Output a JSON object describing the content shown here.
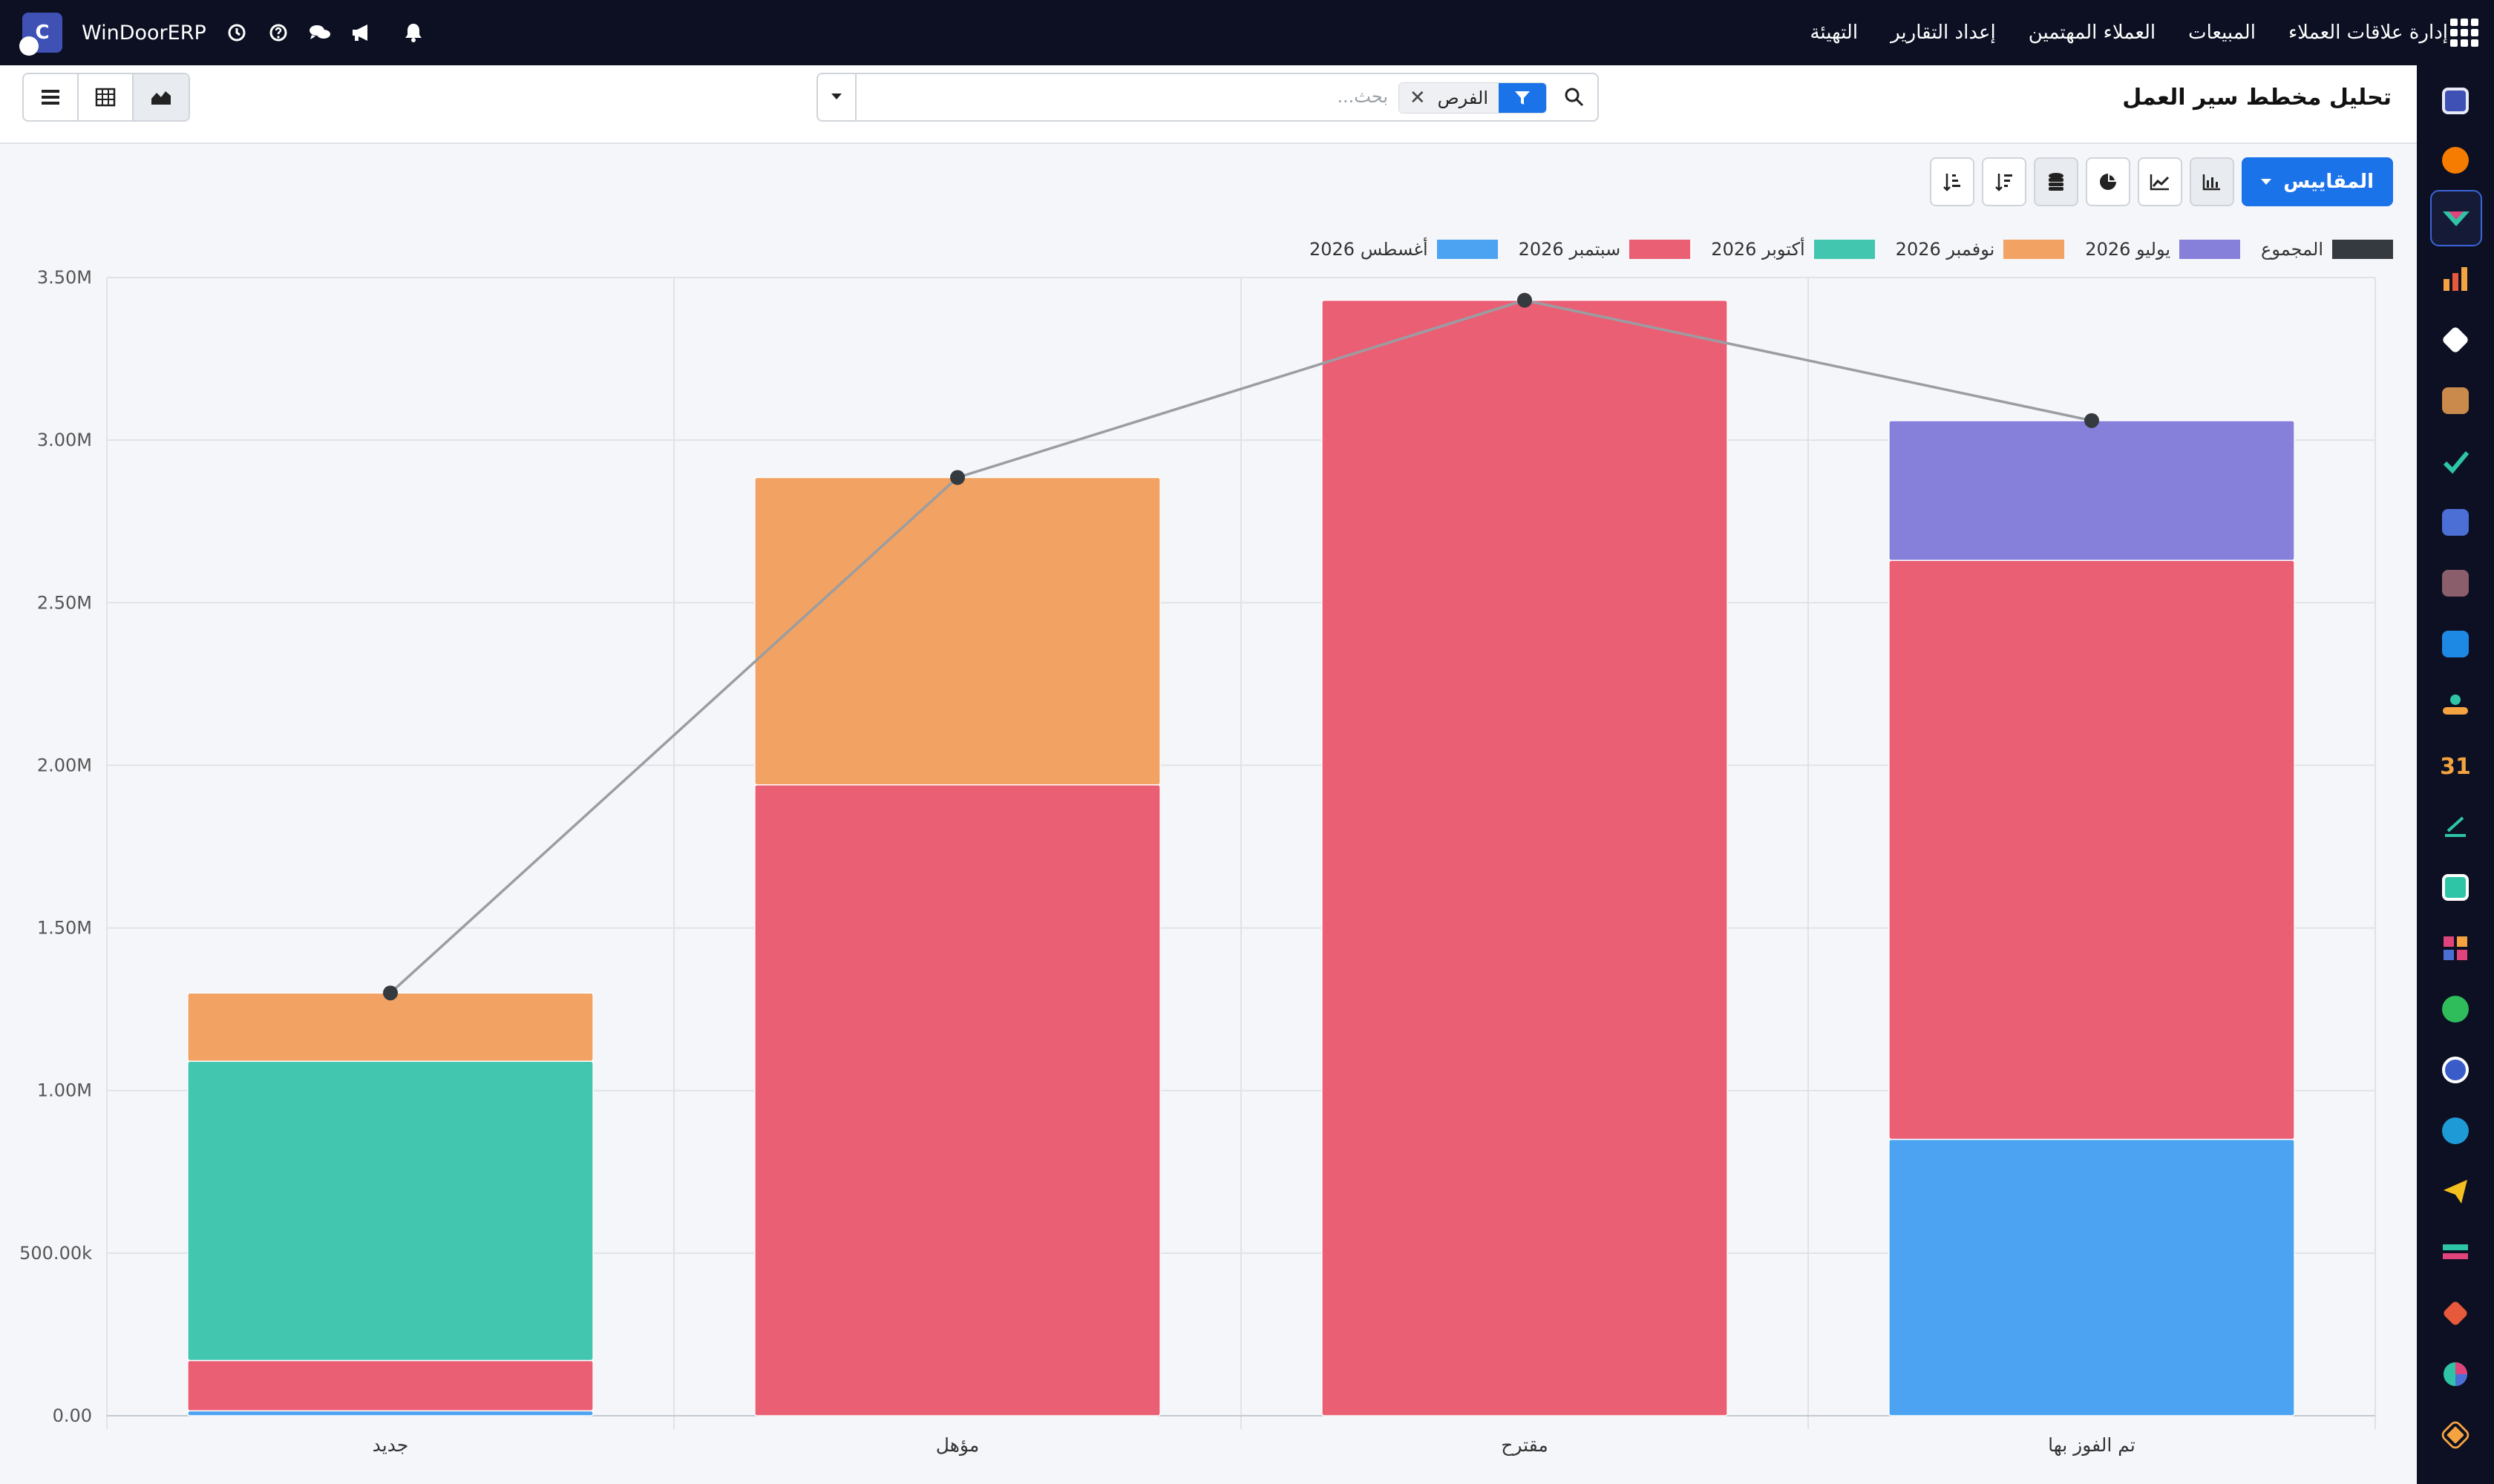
{
  "navbar": {
    "brand": "WinDoorERP",
    "logo_letter": "C",
    "menu": [
      "إدارة علاقات العملاء",
      "المبيعات",
      "العملاء المهتمين",
      "إعداد التقارير",
      "التهيئة"
    ],
    "icons": [
      "clock-icon",
      "help-icon",
      "chat-icon",
      "megaphone-icon",
      "bell-icon"
    ]
  },
  "sidebar_apps": [
    "gmail-icon",
    "discuss-icon",
    "crm-icon",
    "sales-icon",
    "inventory-icon",
    "contacts-icon",
    "tasks-icon",
    "knowledge-icon",
    "product-icon",
    "invoicing-icon",
    "employees-icon",
    "calendar-icon",
    "sign-icon",
    "members-icon",
    "dashboards-icon",
    "whatsapp-icon",
    "time-off-icon",
    "website-icon",
    "telegram-icon",
    "payroll-icon",
    "apps-icon",
    "pie-icon",
    "settings-icon"
  ],
  "control_panel": {
    "title": "تحليل مخطط سير العمل",
    "facet_label": "الفرص",
    "search_placeholder": "بحث...",
    "views": [
      "graph-view",
      "pivot-view",
      "list-view"
    ]
  },
  "toolbar": {
    "measures_label": "المقاييس",
    "buttons": [
      "bar-chart",
      "line-chart",
      "pie-chart",
      "stacked",
      "sort-descending",
      "sort-ascending"
    ]
  },
  "colors": {
    "august": "#4ba3f2",
    "september": "#eb5f75",
    "october": "#43c6b0",
    "november": "#f2a262",
    "july": "#8780db",
    "total": "#353a40",
    "primary": "#1a73e8",
    "navbar": "#0c1022"
  },
  "chart_data": {
    "type": "bar",
    "stacked": true,
    "categories": [
      "جديد",
      "مؤهل",
      "مقترح",
      "تم الفوز بها"
    ],
    "y_ticks": [
      "0.00",
      "500.00k",
      "1.00M",
      "1.50M",
      "2.00M",
      "2.50M",
      "3.00M",
      "3.50M"
    ],
    "ylim": [
      0,
      3500000
    ],
    "legend_position": "top-right",
    "series": [
      {
        "name": "أغسطس 2026",
        "color": "#4ba3f2",
        "values": [
          15000,
          0,
          0,
          850000
        ]
      },
      {
        "name": "سبتمبر 2026",
        "color": "#eb5f75",
        "values": [
          155000,
          1940000,
          3430000,
          1780000
        ]
      },
      {
        "name": "أكتوبر 2026",
        "color": "#43c6b0",
        "values": [
          920000,
          0,
          0,
          0
        ]
      },
      {
        "name": "نوفمبر 2026",
        "color": "#f2a262",
        "values": [
          210000,
          945000,
          0,
          0
        ]
      },
      {
        "name": "يوليو 2026",
        "color": "#8780db",
        "values": [
          0,
          0,
          0,
          430000
        ]
      }
    ],
    "total": {
      "name": "المجموع",
      "color": "#353a40",
      "values": [
        1300000,
        2885000,
        3430000,
        3060000
      ]
    }
  }
}
